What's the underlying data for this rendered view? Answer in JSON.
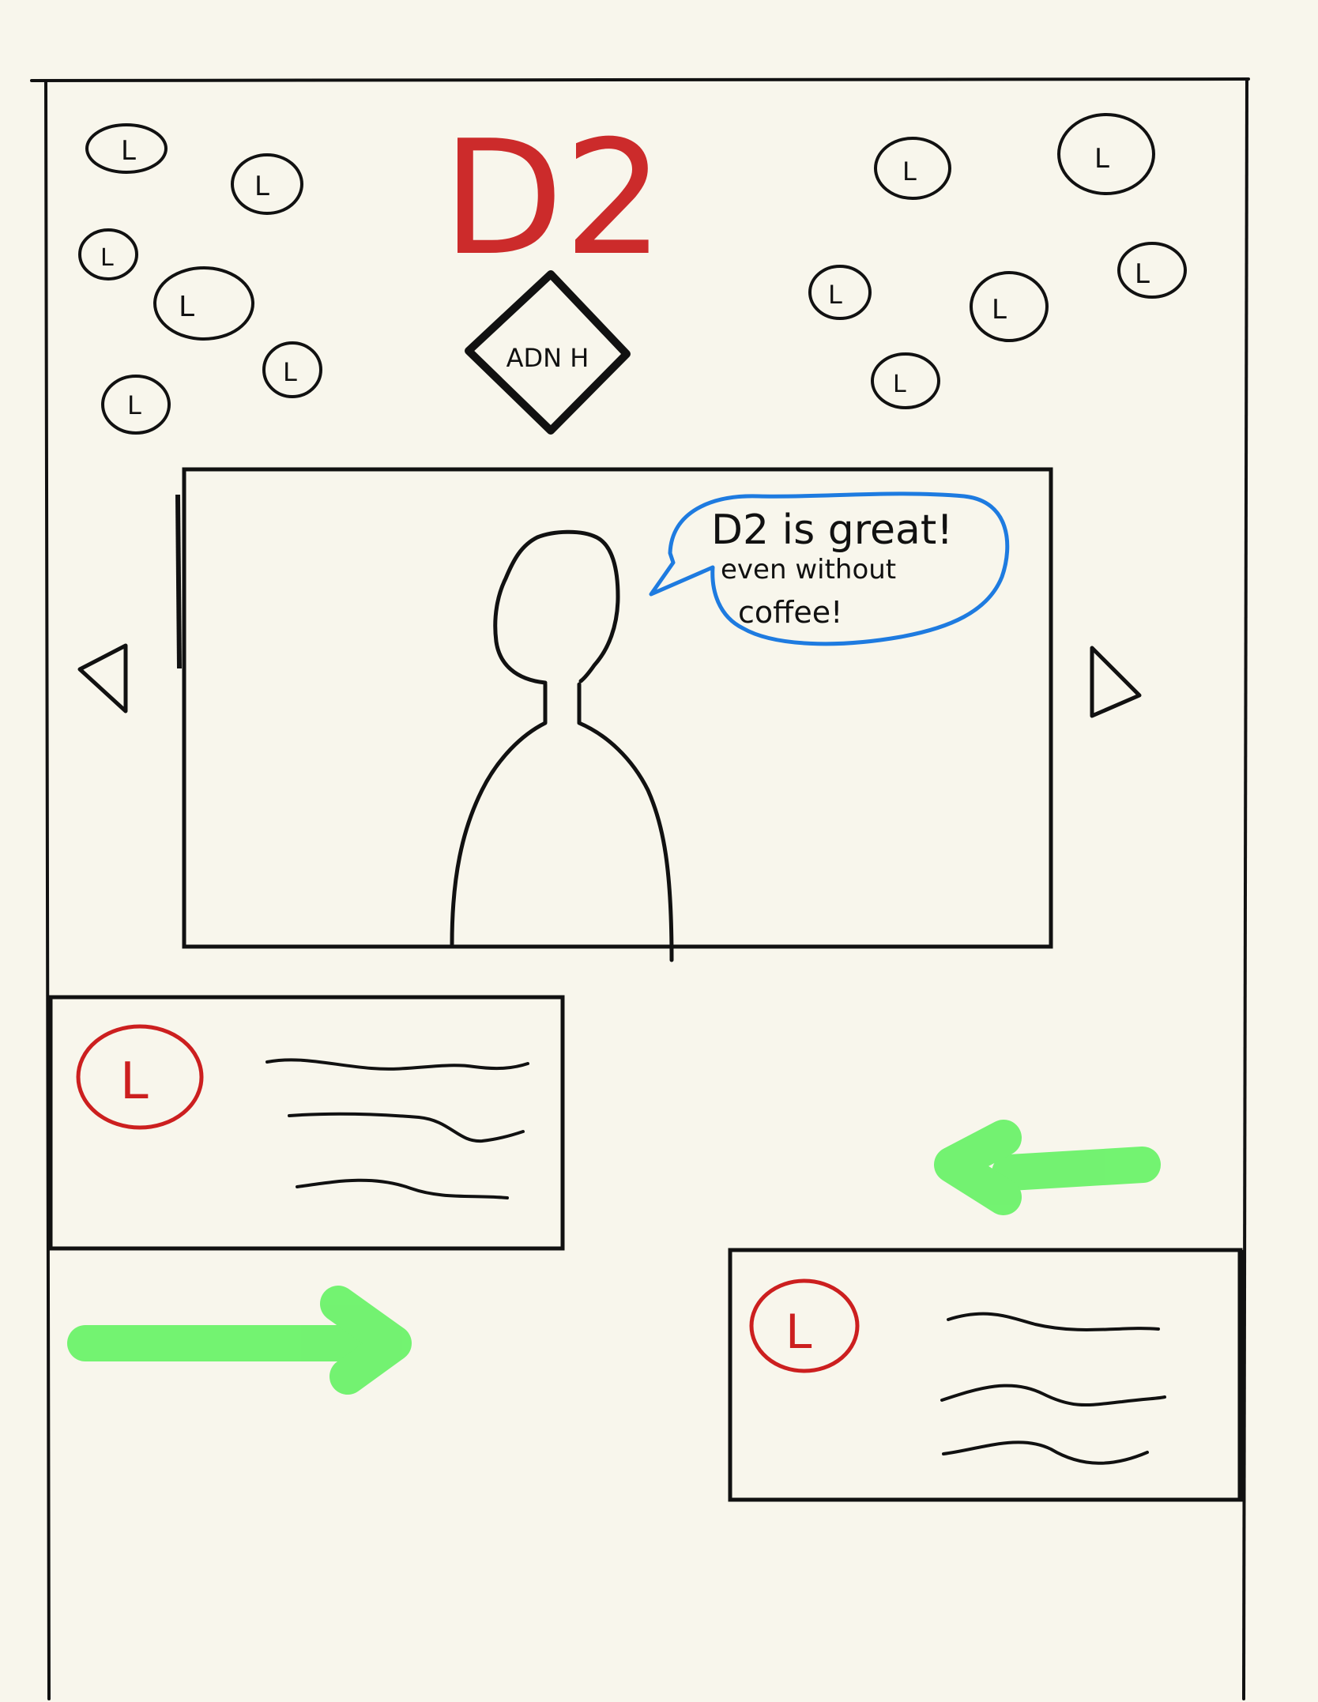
{
  "page": {
    "background_color": "#f8f6ec"
  },
  "header": {
    "title": "D2",
    "title_color": "#cc2b2b",
    "badge_text": "ADN H",
    "logo_circle_label": "L"
  },
  "carousel": {
    "prev_icon": "triangle-left-icon",
    "next_icon": "triangle-right-icon",
    "speech": {
      "line1": "D2 is great!",
      "line2": "even  without",
      "line3": "coffee!",
      "bubble_color": "#1e7be0"
    }
  },
  "cards": [
    {
      "avatar_label": "L",
      "avatar_color": "#cc1f1f"
    },
    {
      "avatar_label": "L",
      "avatar_color": "#cc1f1f"
    }
  ],
  "arrows": {
    "color": "#5cf25c"
  }
}
